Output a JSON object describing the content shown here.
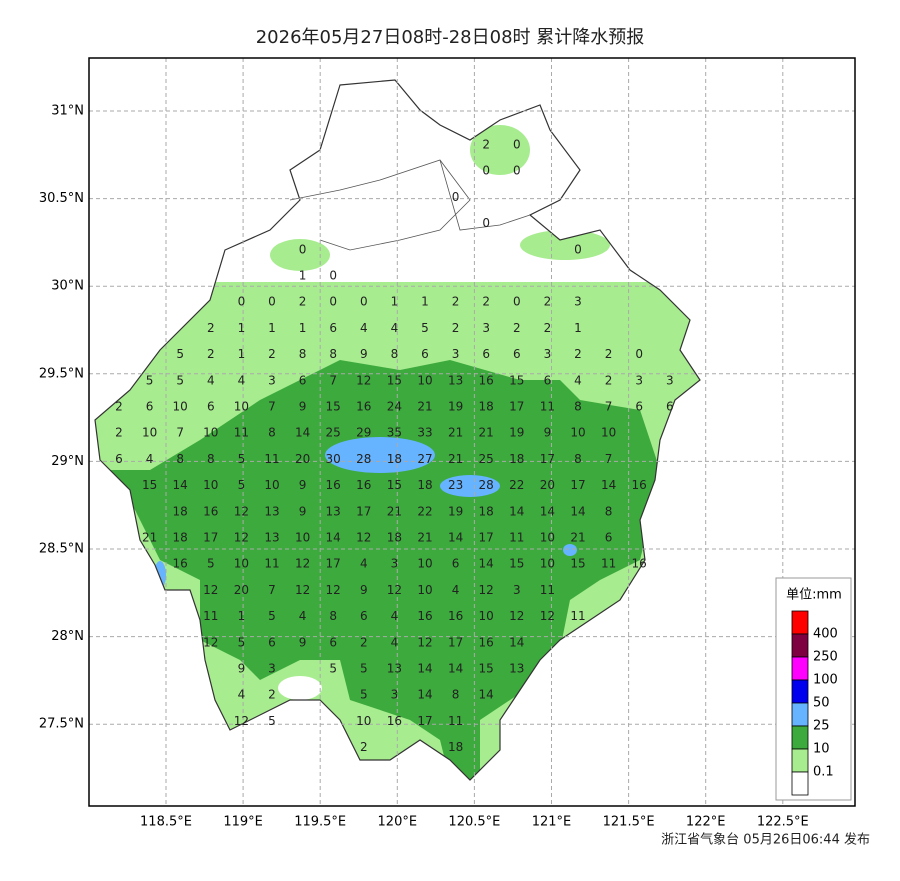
{
  "title": "2026年05月27日08时-28日08时 累计降水预报",
  "lon_ticks": [
    "118.5°E",
    "119°E",
    "119.5°E",
    "120°E",
    "120.5°E",
    "121°E",
    "121.5°E",
    "122°E",
    "122.5°E"
  ],
  "lat_ticks": [
    "31°N",
    "30.5°N",
    "30°N",
    "29.5°N",
    "29°N",
    "28.5°N",
    "28°N",
    "27.5°N"
  ],
  "grid_values": [
    [
      null,
      null,
      null,
      null,
      null,
      null,
      null,
      null,
      null,
      null,
      null,
      null,
      2,
      0,
      null,
      null,
      null,
      null,
      null
    ],
    [
      null,
      null,
      null,
      null,
      null,
      null,
      null,
      null,
      null,
      null,
      null,
      null,
      0,
      0,
      null,
      null,
      null,
      null,
      null
    ],
    [
      null,
      null,
      null,
      null,
      null,
      null,
      null,
      null,
      null,
      null,
      null,
      0,
      null,
      null,
      null,
      null,
      null,
      null,
      null
    ],
    [
      null,
      null,
      null,
      null,
      null,
      null,
      null,
      null,
      null,
      null,
      null,
      null,
      0,
      null,
      null,
      null,
      null,
      null,
      null
    ],
    [
      null,
      null,
      null,
      null,
      null,
      null,
      0,
      null,
      null,
      null,
      null,
      null,
      null,
      null,
      null,
      0,
      null,
      null,
      null
    ],
    [
      null,
      null,
      null,
      null,
      null,
      null,
      1,
      0,
      null,
      null,
      null,
      null,
      null,
      null,
      null,
      null,
      null,
      null,
      null
    ],
    [
      null,
      null,
      null,
      null,
      0,
      0,
      2,
      0,
      0,
      1,
      1,
      2,
      2,
      0,
      2,
      3,
      null,
      null,
      null
    ],
    [
      null,
      null,
      null,
      2,
      1,
      1,
      1,
      6,
      4,
      4,
      5,
      2,
      3,
      2,
      2,
      1,
      null,
      null,
      null
    ],
    [
      null,
      null,
      5,
      2,
      1,
      2,
      8,
      8,
      9,
      8,
      6,
      3,
      6,
      6,
      3,
      2,
      2,
      0,
      null
    ],
    [
      null,
      5,
      5,
      4,
      4,
      3,
      6,
      7,
      12,
      15,
      10,
      13,
      16,
      15,
      6,
      4,
      2,
      3,
      3
    ],
    [
      2,
      6,
      10,
      6,
      10,
      7,
      9,
      15,
      16,
      24,
      21,
      19,
      18,
      17,
      11,
      8,
      7,
      6,
      6
    ],
    [
      2,
      10,
      7,
      10,
      11,
      8,
      14,
      25,
      29,
      35,
      33,
      21,
      21,
      19,
      9,
      10,
      10,
      null,
      null
    ],
    [
      6,
      4,
      8,
      8,
      5,
      11,
      20,
      30,
      28,
      18,
      27,
      21,
      25,
      18,
      17,
      8,
      7,
      null,
      null
    ],
    [
      null,
      15,
      14,
      10,
      5,
      10,
      9,
      16,
      16,
      15,
      18,
      23,
      28,
      22,
      20,
      17,
      14,
      16,
      null
    ],
    [
      null,
      null,
      18,
      16,
      12,
      13,
      9,
      13,
      17,
      21,
      22,
      19,
      18,
      14,
      14,
      14,
      8,
      null,
      null
    ],
    [
      null,
      21,
      18,
      17,
      12,
      13,
      10,
      14,
      12,
      18,
      21,
      14,
      17,
      11,
      10,
      21,
      6,
      null,
      null
    ],
    [
      null,
      null,
      16,
      5,
      10,
      11,
      12,
      17,
      4,
      3,
      10,
      6,
      14,
      15,
      10,
      15,
      11,
      16,
      null
    ],
    [
      null,
      null,
      null,
      12,
      20,
      7,
      12,
      12,
      9,
      12,
      10,
      4,
      12,
      3,
      11,
      null,
      null,
      null,
      null
    ],
    [
      null,
      null,
      null,
      11,
      1,
      5,
      4,
      8,
      6,
      4,
      16,
      16,
      10,
      12,
      12,
      11,
      null,
      null,
      null
    ],
    [
      null,
      null,
      null,
      12,
      5,
      6,
      9,
      6,
      2,
      4,
      12,
      17,
      16,
      14,
      null,
      null,
      null,
      null,
      null
    ],
    [
      null,
      null,
      null,
      null,
      9,
      3,
      null,
      5,
      5,
      13,
      14,
      14,
      15,
      13,
      null,
      null,
      null,
      null,
      null
    ],
    [
      null,
      null,
      null,
      null,
      4,
      2,
      null,
      null,
      5,
      3,
      14,
      8,
      14,
      null,
      null,
      null,
      null,
      null,
      null
    ],
    [
      null,
      null,
      null,
      null,
      12,
      5,
      null,
      null,
      10,
      16,
      17,
      11,
      null,
      null,
      null,
      null,
      null,
      null,
      null
    ],
    [
      null,
      null,
      null,
      null,
      null,
      null,
      null,
      null,
      2,
      null,
      null,
      18,
      null,
      null,
      null,
      null,
      null,
      null,
      null
    ]
  ],
  "legend": {
    "title": "单位:mm",
    "labels": [
      "400",
      "250",
      "100",
      "50",
      "25",
      "10",
      "0.1"
    ],
    "colors": [
      "#ff0000",
      "#7f0040",
      "#ff00ff",
      "#0000ee",
      "#66b3ff",
      "#3daa3d",
      "#a8ec90",
      "#ffffff"
    ]
  },
  "footer": "浙江省气象台 05月26日06:44 发布"
}
